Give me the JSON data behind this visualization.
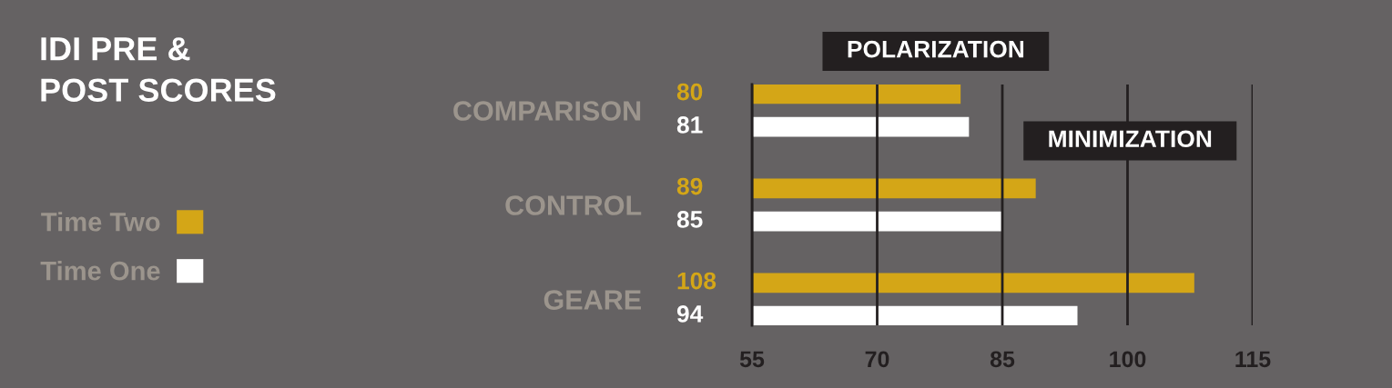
{
  "chart_data": {
    "type": "bar",
    "orientation": "horizontal",
    "title": "IDI PRE &\nPOST SCORES",
    "categories": [
      "COMPARISON",
      "CONTROL",
      "GEARE"
    ],
    "series": [
      {
        "name": "Time Two",
        "color": "#d4a617",
        "values": [
          80,
          89,
          108
        ]
      },
      {
        "name": "Time One",
        "color": "#ffffff",
        "values": [
          81,
          85,
          94
        ]
      }
    ],
    "xlim": [
      55,
      115
    ],
    "xticks": [
      55,
      70,
      85,
      100,
      115
    ],
    "grid": "x",
    "legend": "left",
    "data_labels": true,
    "annotations": [
      "POLARIZATION",
      "MINIMIZATION"
    ]
  }
}
